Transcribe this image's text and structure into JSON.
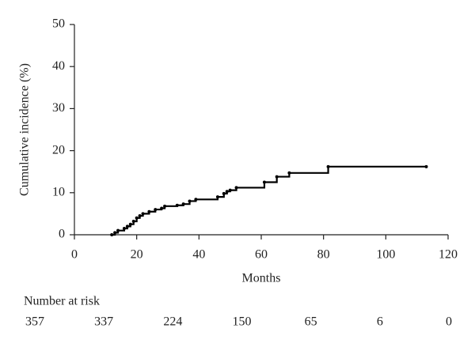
{
  "chart_data": {
    "type": "line",
    "step": "post",
    "markers": true,
    "color": "#000000",
    "xlabel": "Months",
    "ylabel": "Cumulative incidence (%)",
    "x": [
      12,
      13,
      14,
      16,
      17,
      18,
      19,
      20,
      21,
      22,
      24,
      26,
      28,
      29,
      33,
      35,
      37,
      39,
      46,
      48,
      49,
      50,
      52,
      61,
      65,
      69,
      81.5,
      113
    ],
    "values": [
      0,
      0.5,
      1,
      1.5,
      2,
      2.5,
      3.2,
      4,
      4.5,
      5,
      5.5,
      6,
      6.3,
      6.8,
      7,
      7.3,
      8,
      8.4,
      9,
      9.8,
      10.3,
      10.6,
      11.2,
      12.5,
      13.8,
      14.7,
      16.2,
      16.2
    ],
    "xlim": [
      0,
      120
    ],
    "xticks": [
      0,
      20,
      40,
      60,
      80,
      100,
      120
    ],
    "ylim": [
      0,
      50
    ],
    "yticks": [
      0,
      10,
      20,
      30,
      40,
      50
    ],
    "grid": false,
    "risk_table": {
      "title": "Number at risk",
      "values": [
        357,
        337,
        224,
        150,
        65,
        6,
        0
      ]
    }
  }
}
